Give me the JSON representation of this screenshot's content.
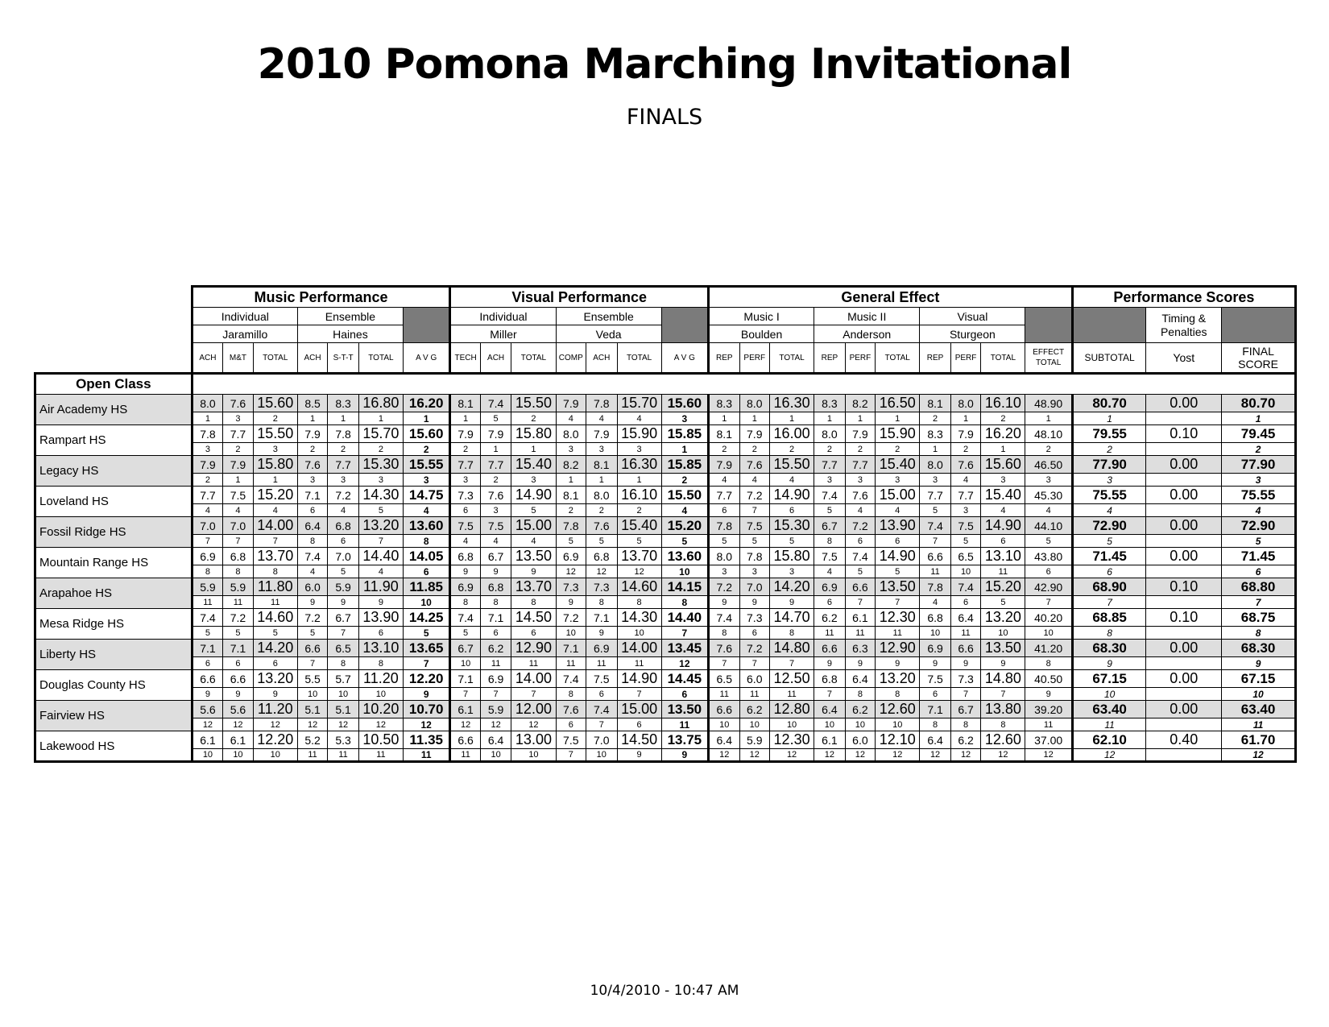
{
  "header": {
    "title": "2010 Pomona Marching Invitational",
    "subtitle": "FINALS"
  },
  "footer": {
    "timestamp": "10/4/2010 - 10:47 AM"
  },
  "groups": {
    "music": "Music Performance",
    "visual": "Visual Performance",
    "effect": "General Effect",
    "perf": "Performance Scores"
  },
  "subgroups": {
    "music_ind": "Individual",
    "music_ind_judge": "Jaramillo",
    "music_ens": "Ensemble",
    "music_ens_judge": "Haines",
    "vis_ind": "Individual",
    "vis_ind_judge": "Miller",
    "vis_ens": "Ensemble",
    "vis_ens_judge": "Veda",
    "ge1": "Music I",
    "ge1_judge": "Boulden",
    "ge2": "Music II",
    "ge2_judge": "Anderson",
    "ge3": "Visual",
    "ge3_judge": "Sturgeon",
    "timing": "Timing & Penalties",
    "timing_judge": "Yost"
  },
  "columns": {
    "mi_1": "ACH",
    "mi_2": "M&T",
    "mi_t": "TOTAL",
    "me_1": "ACH",
    "me_2": "S-T-T",
    "me_t": "TOTAL",
    "m_avg": "A V G",
    "vi_1": "TECH",
    "vi_2": "ACH",
    "vi_t": "TOTAL",
    "ve_1": "COMP",
    "ve_2": "ACH",
    "ve_t": "TOTAL",
    "v_avg": "A V G",
    "g1_1": "REP",
    "g1_2": "PERF",
    "g1_t": "TOTAL",
    "g2_1": "REP",
    "g2_2": "PERF",
    "g2_t": "TOTAL",
    "g3_1": "REP",
    "g3_2": "PERF",
    "g3_t": "TOTAL",
    "effect_total_1": "EFFECT",
    "effect_total_2": "TOTAL",
    "subtotal": "SUBTOTAL",
    "final_1": "FINAL",
    "final_2": "SCORE"
  },
  "class_label": "Open Class",
  "schools": [
    {
      "name": "Air Academy HS",
      "scores": [
        "8.0",
        "7.6",
        "15.60",
        "8.5",
        "8.3",
        "16.80",
        "16.20",
        "8.1",
        "7.4",
        "15.50",
        "7.9",
        "7.8",
        "15.70",
        "15.60",
        "8.3",
        "8.0",
        "16.30",
        "8.3",
        "8.2",
        "16.50",
        "8.1",
        "8.0",
        "16.10",
        "48.90",
        "80.70",
        "0.00",
        "80.70"
      ],
      "ranks": [
        "1",
        "3",
        "2",
        "1",
        "1",
        "1",
        "1",
        "1",
        "5",
        "2",
        "4",
        "4",
        "4",
        "3",
        "1",
        "1",
        "1",
        "1",
        "1",
        "1",
        "2",
        "1",
        "2",
        "1",
        "1",
        "",
        "1"
      ]
    },
    {
      "name": "Rampart HS",
      "scores": [
        "7.8",
        "7.7",
        "15.50",
        "7.9",
        "7.8",
        "15.70",
        "15.60",
        "7.9",
        "7.9",
        "15.80",
        "8.0",
        "7.9",
        "15.90",
        "15.85",
        "8.1",
        "7.9",
        "16.00",
        "8.0",
        "7.9",
        "15.90",
        "8.3",
        "7.9",
        "16.20",
        "48.10",
        "79.55",
        "0.10",
        "79.45"
      ],
      "ranks": [
        "3",
        "2",
        "3",
        "2",
        "2",
        "2",
        "2",
        "2",
        "1",
        "1",
        "3",
        "3",
        "3",
        "1",
        "2",
        "2",
        "2",
        "2",
        "2",
        "2",
        "1",
        "2",
        "1",
        "2",
        "2",
        "",
        "2"
      ]
    },
    {
      "name": "Legacy HS",
      "scores": [
        "7.9",
        "7.9",
        "15.80",
        "7.6",
        "7.7",
        "15.30",
        "15.55",
        "7.7",
        "7.7",
        "15.40",
        "8.2",
        "8.1",
        "16.30",
        "15.85",
        "7.9",
        "7.6",
        "15.50",
        "7.7",
        "7.7",
        "15.40",
        "8.0",
        "7.6",
        "15.60",
        "46.50",
        "77.90",
        "0.00",
        "77.90"
      ],
      "ranks": [
        "2",
        "1",
        "1",
        "3",
        "3",
        "3",
        "3",
        "3",
        "2",
        "3",
        "1",
        "1",
        "1",
        "2",
        "4",
        "4",
        "4",
        "3",
        "3",
        "3",
        "3",
        "4",
        "3",
        "3",
        "3",
        "",
        "3"
      ]
    },
    {
      "name": "Loveland HS",
      "scores": [
        "7.7",
        "7.5",
        "15.20",
        "7.1",
        "7.2",
        "14.30",
        "14.75",
        "7.3",
        "7.6",
        "14.90",
        "8.1",
        "8.0",
        "16.10",
        "15.50",
        "7.7",
        "7.2",
        "14.90",
        "7.4",
        "7.6",
        "15.00",
        "7.7",
        "7.7",
        "15.40",
        "45.30",
        "75.55",
        "0.00",
        "75.55"
      ],
      "ranks": [
        "4",
        "4",
        "4",
        "6",
        "4",
        "5",
        "4",
        "6",
        "3",
        "5",
        "2",
        "2",
        "2",
        "4",
        "6",
        "7",
        "6",
        "5",
        "4",
        "4",
        "5",
        "3",
        "4",
        "4",
        "4",
        "",
        "4"
      ]
    },
    {
      "name": "Fossil Ridge HS",
      "scores": [
        "7.0",
        "7.0",
        "14.00",
        "6.4",
        "6.8",
        "13.20",
        "13.60",
        "7.5",
        "7.5",
        "15.00",
        "7.8",
        "7.6",
        "15.40",
        "15.20",
        "7.8",
        "7.5",
        "15.30",
        "6.7",
        "7.2",
        "13.90",
        "7.4",
        "7.5",
        "14.90",
        "44.10",
        "72.90",
        "0.00",
        "72.90"
      ],
      "ranks": [
        "7",
        "7",
        "7",
        "8",
        "6",
        "7",
        "8",
        "4",
        "4",
        "4",
        "5",
        "5",
        "5",
        "5",
        "5",
        "5",
        "5",
        "8",
        "6",
        "6",
        "7",
        "5",
        "6",
        "5",
        "5",
        "",
        "5"
      ]
    },
    {
      "name": "Mountain Range HS",
      "scores": [
        "6.9",
        "6.8",
        "13.70",
        "7.4",
        "7.0",
        "14.40",
        "14.05",
        "6.8",
        "6.7",
        "13.50",
        "6.9",
        "6.8",
        "13.70",
        "13.60",
        "8.0",
        "7.8",
        "15.80",
        "7.5",
        "7.4",
        "14.90",
        "6.6",
        "6.5",
        "13.10",
        "43.80",
        "71.45",
        "0.00",
        "71.45"
      ],
      "ranks": [
        "8",
        "8",
        "8",
        "4",
        "5",
        "4",
        "6",
        "9",
        "9",
        "9",
        "12",
        "12",
        "12",
        "10",
        "3",
        "3",
        "3",
        "4",
        "5",
        "5",
        "11",
        "10",
        "11",
        "6",
        "6",
        "",
        "6"
      ]
    },
    {
      "name": "Arapahoe HS",
      "scores": [
        "5.9",
        "5.9",
        "11.80",
        "6.0",
        "5.9",
        "11.90",
        "11.85",
        "6.9",
        "6.8",
        "13.70",
        "7.3",
        "7.3",
        "14.60",
        "14.15",
        "7.2",
        "7.0",
        "14.20",
        "6.9",
        "6.6",
        "13.50",
        "7.8",
        "7.4",
        "15.20",
        "42.90",
        "68.90",
        "0.10",
        "68.80"
      ],
      "ranks": [
        "11",
        "11",
        "11",
        "9",
        "9",
        "9",
        "10",
        "8",
        "8",
        "8",
        "9",
        "8",
        "8",
        "8",
        "9",
        "9",
        "9",
        "6",
        "7",
        "7",
        "4",
        "6",
        "5",
        "7",
        "7",
        "",
        "7"
      ]
    },
    {
      "name": "Mesa Ridge HS",
      "scores": [
        "7.4",
        "7.2",
        "14.60",
        "7.2",
        "6.7",
        "13.90",
        "14.25",
        "7.4",
        "7.1",
        "14.50",
        "7.2",
        "7.1",
        "14.30",
        "14.40",
        "7.4",
        "7.3",
        "14.70",
        "6.2",
        "6.1",
        "12.30",
        "6.8",
        "6.4",
        "13.20",
        "40.20",
        "68.85",
        "0.10",
        "68.75"
      ],
      "ranks": [
        "5",
        "5",
        "5",
        "5",
        "7",
        "6",
        "5",
        "5",
        "6",
        "6",
        "10",
        "9",
        "10",
        "7",
        "8",
        "6",
        "8",
        "11",
        "11",
        "11",
        "10",
        "11",
        "10",
        "10",
        "8",
        "",
        "8"
      ]
    },
    {
      "name": "Liberty HS",
      "scores": [
        "7.1",
        "7.1",
        "14.20",
        "6.6",
        "6.5",
        "13.10",
        "13.65",
        "6.7",
        "6.2",
        "12.90",
        "7.1",
        "6.9",
        "14.00",
        "13.45",
        "7.6",
        "7.2",
        "14.80",
        "6.6",
        "6.3",
        "12.90",
        "6.9",
        "6.6",
        "13.50",
        "41.20",
        "68.30",
        "0.00",
        "68.30"
      ],
      "ranks": [
        "6",
        "6",
        "6",
        "7",
        "8",
        "8",
        "7",
        "10",
        "11",
        "11",
        "11",
        "11",
        "11",
        "12",
        "7",
        "7",
        "7",
        "9",
        "9",
        "9",
        "9",
        "9",
        "9",
        "8",
        "9",
        "",
        "9"
      ]
    },
    {
      "name": "Douglas County HS",
      "scores": [
        "6.6",
        "6.6",
        "13.20",
        "5.5",
        "5.7",
        "11.20",
        "12.20",
        "7.1",
        "6.9",
        "14.00",
        "7.4",
        "7.5",
        "14.90",
        "14.45",
        "6.5",
        "6.0",
        "12.50",
        "6.8",
        "6.4",
        "13.20",
        "7.5",
        "7.3",
        "14.80",
        "40.50",
        "67.15",
        "0.00",
        "67.15"
      ],
      "ranks": [
        "9",
        "9",
        "9",
        "10",
        "10",
        "10",
        "9",
        "7",
        "7",
        "7",
        "8",
        "6",
        "7",
        "6",
        "11",
        "11",
        "11",
        "7",
        "8",
        "8",
        "6",
        "7",
        "7",
        "9",
        "10",
        "",
        "10"
      ]
    },
    {
      "name": "Fairview HS",
      "scores": [
        "5.6",
        "5.6",
        "11.20",
        "5.1",
        "5.1",
        "10.20",
        "10.70",
        "6.1",
        "5.9",
        "12.00",
        "7.6",
        "7.4",
        "15.00",
        "13.50",
        "6.6",
        "6.2",
        "12.80",
        "6.4",
        "6.2",
        "12.60",
        "7.1",
        "6.7",
        "13.80",
        "39.20",
        "63.40",
        "0.00",
        "63.40"
      ],
      "ranks": [
        "12",
        "12",
        "12",
        "12",
        "12",
        "12",
        "12",
        "12",
        "12",
        "12",
        "6",
        "7",
        "6",
        "11",
        "10",
        "10",
        "10",
        "10",
        "10",
        "10",
        "8",
        "8",
        "8",
        "11",
        "11",
        "",
        "11"
      ]
    },
    {
      "name": "Lakewood HS",
      "scores": [
        "6.1",
        "6.1",
        "12.20",
        "5.2",
        "5.3",
        "10.50",
        "11.35",
        "6.6",
        "6.4",
        "13.00",
        "7.5",
        "7.0",
        "14.50",
        "13.75",
        "6.4",
        "5.9",
        "12.30",
        "6.1",
        "6.0",
        "12.10",
        "6.4",
        "6.2",
        "12.60",
        "37.00",
        "62.10",
        "0.40",
        "61.70"
      ],
      "ranks": [
        "10",
        "10",
        "10",
        "11",
        "11",
        "11",
        "11",
        "11",
        "10",
        "10",
        "7",
        "10",
        "9",
        "9",
        "12",
        "12",
        "12",
        "12",
        "12",
        "12",
        "12",
        "12",
        "12",
        "12",
        "12",
        "",
        "12"
      ]
    }
  ]
}
